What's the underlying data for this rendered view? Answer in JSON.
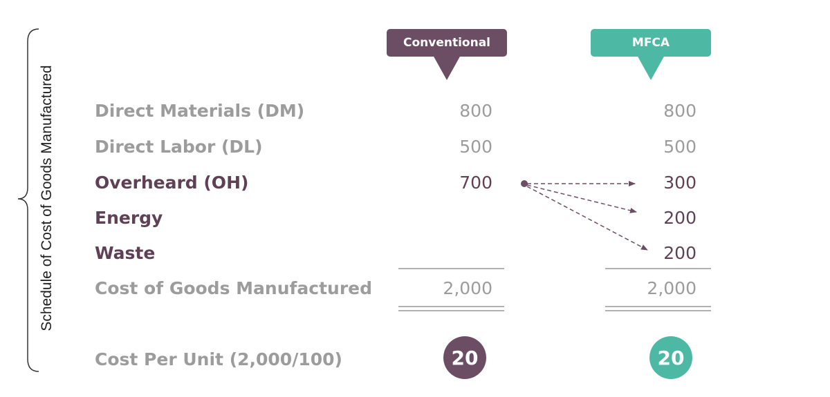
{
  "side_label": "Schedule of Cost of Goods Manufactured",
  "headers": {
    "conventional": "Conventional",
    "mfca": "MFCA"
  },
  "rows": [
    {
      "label": "Direct Materials (DM)",
      "conventional": "800",
      "mfca": "800"
    },
    {
      "label": "Direct Labor (DL)",
      "conventional": "500",
      "mfca": "500"
    },
    {
      "label": "Overheard (OH)",
      "conventional": "700",
      "mfca": "300"
    },
    {
      "label": "Energy",
      "conventional": "",
      "mfca": "200"
    },
    {
      "label": "Waste",
      "conventional": "",
      "mfca": "200"
    }
  ],
  "total": {
    "label": "Cost of Goods Manufactured",
    "conventional": "2,000",
    "mfca": "2,000"
  },
  "per_unit": {
    "label": "Cost Per Unit (2,000/100)",
    "conventional": "20",
    "mfca": "20"
  },
  "colors": {
    "conventional": "#6c4e64",
    "mfca": "#4db8a4",
    "muted_text": "#9c9c9c",
    "dark_text": "#5f4156"
  }
}
